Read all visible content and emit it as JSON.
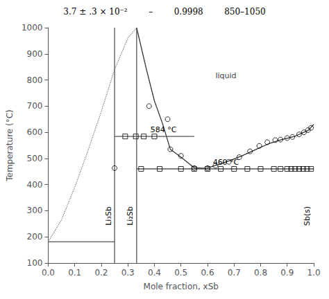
{
  "chart_data": {
    "type": "line",
    "title": "3.7 ± .3 × 10⁻²        –        0.9998        850–1050",
    "xlabel": "Mole fraction, xSb",
    "ylabel": "Temperature (°C)",
    "xlim": [
      0.0,
      1.0
    ],
    "ylim": [
      100,
      1000
    ],
    "xticks": [
      {
        "value": 0,
        "label": "0.0"
      },
      0.1,
      0.2,
      0.3,
      0.4,
      0.5,
      0.6,
      0.7,
      0.8,
      0.9,
      {
        "value": 1,
        "label": "1.0"
      }
    ],
    "yticks": [
      100,
      200,
      300,
      400,
      500,
      600,
      700,
      800,
      900,
      1000
    ],
    "grid": false,
    "series": [
      {
        "type": "line",
        "color": "gray",
        "line_style": "dotted",
        "x": [
          0.0,
          0.05,
          0.1,
          0.15,
          0.2,
          0.25,
          0.3,
          0.333
        ],
        "values": [
          181,
          265,
          390,
          530,
          680,
          840,
          960,
          1000
        ]
      },
      {
        "type": "line",
        "color": "#333333",
        "line_style": "solid",
        "x": [
          0.333,
          0.37,
          0.4,
          0.43,
          0.46,
          0.5,
          0.55,
          0.595
        ],
        "values": [
          1000,
          840,
          720,
          635,
          535,
          505,
          464,
          462
        ]
      },
      {
        "type": "line",
        "color": "#333333",
        "line_style": "solid",
        "x": [
          0.595,
          0.63,
          0.68,
          0.73,
          0.78,
          0.83,
          0.88,
          0.93,
          0.98,
          1.0
        ],
        "values": [
          462,
          473,
          490,
          510,
          533,
          556,
          572,
          585,
          608,
          630
        ]
      },
      {
        "type": "line",
        "color": "#555555",
        "line_style": "solid",
        "x": [
          0.0,
          0.25
        ],
        "values": [
          181,
          181
        ]
      },
      {
        "type": "line",
        "color": "#555555",
        "line_style": "solid",
        "x": [
          0.25,
          0.55
        ],
        "values": [
          584,
          584
        ]
      },
      {
        "type": "line",
        "color": "#555555",
        "line_style": "solid",
        "x": [
          0.333,
          1.0
        ],
        "values": [
          460,
          460
        ]
      },
      {
        "type": "line",
        "color": "#555555",
        "line_style": "solid",
        "x": [
          0.25,
          0.25
        ],
        "values": [
          100,
          1000
        ]
      },
      {
        "type": "line",
        "color": "#555555",
        "line_style": "solid",
        "x": [
          0.333,
          0.333
        ],
        "values": [
          100,
          1000
        ]
      },
      {
        "type": "scatter",
        "color": "#000000",
        "marker": "circle",
        "x": [
          0.38,
          0.45,
          0.46,
          0.5,
          0.55,
          0.6,
          0.63,
          0.68,
          0.72,
          0.76,
          0.795,
          0.825,
          0.855,
          0.875,
          0.9,
          0.92,
          0.945,
          0.963,
          0.978,
          0.99,
          0.25
        ],
        "values": [
          700,
          650,
          535,
          510,
          463,
          463,
          472,
          487,
          505,
          527,
          548,
          562,
          570,
          572,
          578,
          582,
          592,
          600,
          608,
          617,
          463
        ]
      },
      {
        "type": "scatter",
        "color": "#000000",
        "marker": "square",
        "x": [
          0.29,
          0.33,
          0.36,
          0.4
        ],
        "values": [
          584,
          584,
          584,
          584
        ]
      },
      {
        "type": "scatter",
        "color": "#000000",
        "marker": "square",
        "x": [
          0.35,
          0.42,
          0.5,
          0.55,
          0.6,
          0.65,
          0.7,
          0.75,
          0.8,
          0.85,
          0.875,
          0.9,
          0.915,
          0.93,
          0.945,
          0.96,
          0.975,
          0.99
        ],
        "values": [
          460,
          460,
          460,
          460,
          460,
          460,
          460,
          460,
          460,
          460,
          460,
          460,
          460,
          460,
          460,
          460,
          460,
          460
        ]
      }
    ],
    "annotations": [
      {
        "text": "liquid",
        "x": 0.63,
        "y": 790,
        "color": "#444444"
      },
      {
        "text": "584 °C",
        "x": 0.385,
        "y": 584,
        "color": "#000000"
      },
      {
        "text": "460 °C",
        "x": 0.62,
        "y": 460,
        "color": "#000000"
      },
      {
        "text": "Li₃Sb",
        "x": 0.248,
        "y": 280,
        "color": "#000000",
        "orientation": "vertical"
      },
      {
        "text": "Li₂Sb",
        "x": 0.328,
        "y": 280,
        "color": "#000000",
        "orientation": "vertical"
      },
      {
        "text": "Sb(s)",
        "x": 0.994,
        "y": 280,
        "color": "#000000",
        "orientation": "vertical"
      }
    ]
  }
}
